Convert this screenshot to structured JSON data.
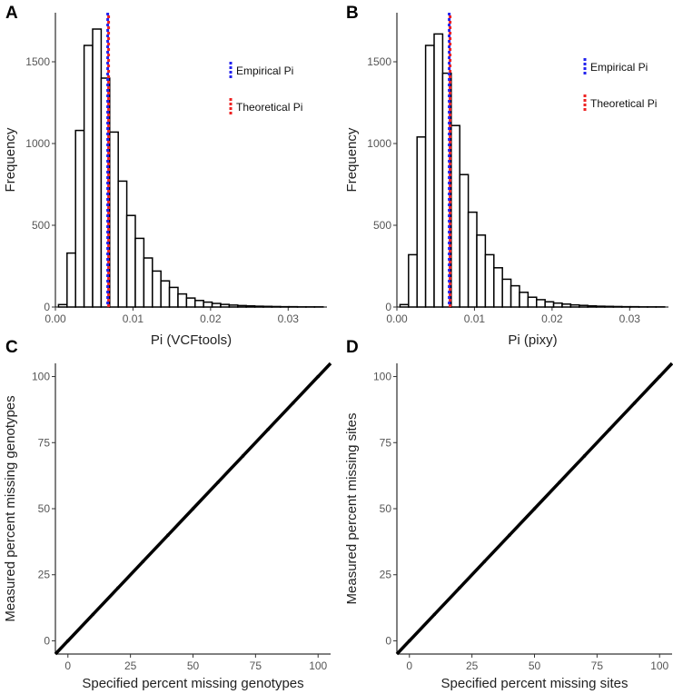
{
  "figure": {
    "panels": [
      {
        "letter": "A"
      },
      {
        "letter": "B"
      },
      {
        "letter": "C"
      },
      {
        "letter": "D"
      }
    ]
  },
  "chart_data": [
    {
      "panel": "A",
      "type": "bar",
      "xlabel": "Pi (VCFtools)",
      "ylabel": "Frequency",
      "xlim": [
        0,
        0.035
      ],
      "ylim": [
        0,
        1800
      ],
      "xticks": [
        0.0,
        0.01,
        0.02,
        0.03
      ],
      "xtick_labels": [
        "0.00",
        "0.01",
        "0.02",
        "0.03"
      ],
      "yticks": [
        0,
        500,
        1000,
        1500
      ],
      "ytick_labels": [
        "0",
        "500",
        "1000",
        "1500"
      ],
      "bin_start": 0.0004,
      "bin_width": 0.0011,
      "values": [
        15,
        330,
        1080,
        1600,
        1700,
        1400,
        1070,
        770,
        560,
        420,
        300,
        220,
        160,
        120,
        80,
        55,
        40,
        30,
        22,
        16,
        12,
        9,
        7,
        5,
        4,
        3,
        2,
        2,
        1,
        1,
        1
      ],
      "vlines": [
        {
          "name": "Empirical Pi",
          "x": 0.0068,
          "color": "#2222ee"
        },
        {
          "name": "Theoretical Pi",
          "x": 0.0068,
          "color": "#ee2222"
        }
      ],
      "legend": [
        {
          "label": "Empirical Pi",
          "color": "#2222ee"
        },
        {
          "label": "Theoretical Pi",
          "color": "#ee2222"
        }
      ]
    },
    {
      "panel": "B",
      "type": "bar",
      "xlabel": "Pi (pixy)",
      "ylabel": "Frequency",
      "xlim": [
        0,
        0.035
      ],
      "ylim": [
        0,
        1800
      ],
      "xticks": [
        0.0,
        0.01,
        0.02,
        0.03
      ],
      "xtick_labels": [
        "0.00",
        "0.01",
        "0.02",
        "0.03"
      ],
      "yticks": [
        0,
        500,
        1000,
        1500
      ],
      "ytick_labels": [
        "0",
        "500",
        "1000",
        "1500"
      ],
      "bin_start": 0.0004,
      "bin_width": 0.0011,
      "values": [
        15,
        320,
        1040,
        1600,
        1670,
        1430,
        1110,
        810,
        580,
        440,
        320,
        240,
        170,
        130,
        90,
        60,
        45,
        32,
        24,
        18,
        13,
        10,
        7,
        5,
        4,
        3,
        2,
        2,
        1,
        1,
        1
      ],
      "vlines": [
        {
          "name": "Empirical Pi",
          "x": 0.0068,
          "color": "#2222ee"
        },
        {
          "name": "Theoretical Pi",
          "x": 0.0068,
          "color": "#ee2222"
        }
      ],
      "legend": [
        {
          "label": "Empirical Pi",
          "color": "#2222ee"
        },
        {
          "label": "Theoretical Pi",
          "color": "#ee2222"
        }
      ]
    },
    {
      "panel": "C",
      "type": "scatter",
      "xlabel": "Specified percent missing genotypes",
      "ylabel": "Measured percent missing genotypes",
      "xlim": [
        -5,
        105
      ],
      "ylim": [
        -5,
        105
      ],
      "xticks": [
        0,
        25,
        50,
        75,
        100
      ],
      "xtick_labels": [
        "0",
        "25",
        "50",
        "75",
        "100"
      ],
      "yticks": [
        0,
        25,
        50,
        75,
        100
      ],
      "ytick_labels": [
        "0",
        "25",
        "50",
        "75",
        "100"
      ],
      "x": [
        0,
        10,
        20,
        30,
        40,
        50,
        60,
        70,
        80,
        90,
        100
      ],
      "y": [
        0,
        10,
        20,
        30,
        40,
        50,
        60,
        70,
        80,
        90,
        100
      ],
      "note": "points lie on the identity line y = x"
    },
    {
      "panel": "D",
      "type": "scatter",
      "xlabel": "Specified percent missing sites",
      "ylabel": "Measured percent missing sites",
      "xlim": [
        -5,
        105
      ],
      "ylim": [
        -5,
        105
      ],
      "xticks": [
        0,
        25,
        50,
        75,
        100
      ],
      "xtick_labels": [
        "0",
        "25",
        "50",
        "75",
        "100"
      ],
      "yticks": [
        0,
        25,
        50,
        75,
        100
      ],
      "ytick_labels": [
        "0",
        "25",
        "50",
        "75",
        "100"
      ],
      "x": [
        0,
        10,
        20,
        30,
        40,
        50,
        60,
        70,
        80,
        90,
        100
      ],
      "y": [
        0,
        10,
        20,
        30,
        40,
        50,
        60,
        70,
        80,
        90,
        100
      ],
      "note": "points lie on the identity line y = x"
    }
  ]
}
